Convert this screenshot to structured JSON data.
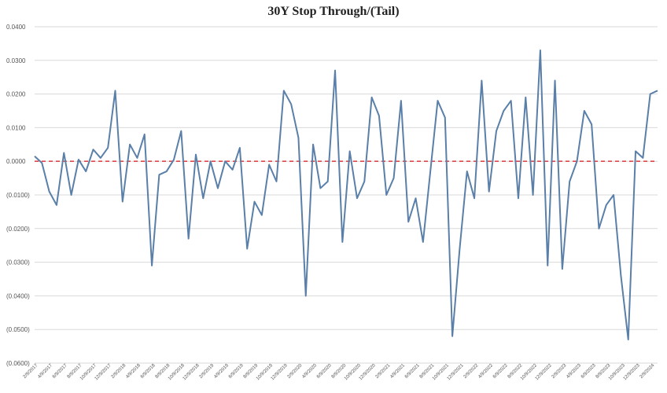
{
  "chart_data": {
    "type": "line",
    "title": "30Y Stop Through/(Tail)",
    "xlabel": "",
    "ylabel": "",
    "ylim": [
      -0.06,
      0.04
    ],
    "yticks": [
      0.04,
      0.03,
      0.02,
      0.01,
      0.0,
      -0.01,
      -0.02,
      -0.03,
      -0.04,
      -0.05,
      -0.06
    ],
    "ytick_labels": [
      "0.0400",
      "0.0300",
      "0.0200",
      "0.0100",
      "0.0000",
      "(0.0100)",
      "(0.0200)",
      "(0.0300)",
      "(0.0400)",
      "(0.0500)",
      "(0.0600)"
    ],
    "grid": true,
    "x_tick_labels": [
      "2/9/2017",
      "4/9/2017",
      "6/9/2017",
      "8/9/2017",
      "10/9/2017",
      "12/9/2017",
      "2/9/2018",
      "4/9/2018",
      "6/9/2018",
      "8/9/2018",
      "10/9/2018",
      "12/9/2018",
      "2/9/2019",
      "4/9/2019",
      "6/9/2019",
      "8/9/2019",
      "10/9/2019",
      "12/9/2019",
      "2/9/2020",
      "4/9/2020",
      "6/9/2020",
      "8/9/2020",
      "10/9/2020",
      "12/9/2020",
      "2/9/2021",
      "4/9/2021",
      "6/9/2021",
      "8/9/2021",
      "10/9/2021",
      "12/9/2021",
      "2/9/2022",
      "4/9/2022",
      "6/9/2022",
      "8/9/2022",
      "10/9/2022",
      "12/9/2022",
      "2/9/2023",
      "4/9/2023",
      "6/9/2023",
      "8/9/2023",
      "10/9/2023",
      "12/9/2023",
      "2/9/2024"
    ],
    "reference_line": {
      "y": 0.0,
      "color": "#e0474c",
      "style": "dashed"
    },
    "series": [
      {
        "color": "#5a7fa8",
        "values": [
          0.0015,
          -0.0005,
          -0.009,
          -0.013,
          0.0025,
          -0.01,
          0.0005,
          -0.003,
          0.0035,
          0.001,
          0.004,
          0.021,
          -0.012,
          0.005,
          0.001,
          0.008,
          -0.031,
          -0.004,
          -0.003,
          0.0005,
          0.009,
          -0.023,
          0.002,
          -0.011,
          0.0,
          -0.008,
          0.0,
          -0.0025,
          0.004,
          -0.026,
          -0.012,
          -0.016,
          -0.001,
          -0.006,
          0.021,
          0.017,
          0.007,
          -0.04,
          0.005,
          -0.008,
          -0.006,
          0.027,
          -0.024,
          0.003,
          -0.011,
          -0.006,
          0.019,
          0.0135,
          -0.01,
          -0.005,
          0.018,
          -0.018,
          -0.011,
          -0.024,
          -0.003,
          0.018,
          0.013,
          -0.052,
          -0.026,
          -0.003,
          -0.011,
          0.024,
          -0.009,
          0.009,
          0.015,
          0.018,
          -0.011,
          0.019,
          -0.01,
          0.033,
          -0.031,
          0.024,
          -0.032,
          -0.006,
          0.0,
          0.015,
          0.011,
          -0.02,
          -0.013,
          -0.01,
          -0.034,
          -0.053,
          0.003,
          0.001,
          0.02,
          0.021
        ]
      }
    ]
  }
}
